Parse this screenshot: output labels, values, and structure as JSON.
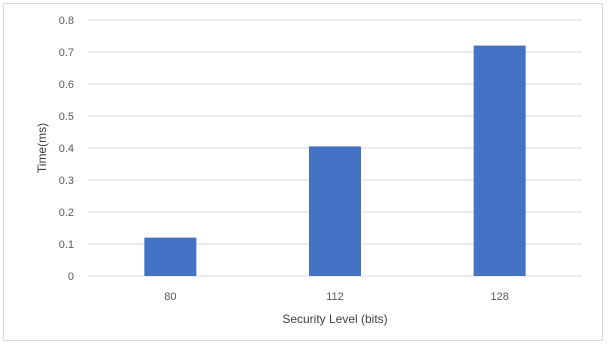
{
  "chart_data": {
    "type": "bar",
    "title": "",
    "xlabel": "Security Level (bits)",
    "ylabel": "Time(ms)",
    "categories": [
      "80",
      "112",
      "128"
    ],
    "values": [
      0.12,
      0.405,
      0.72
    ],
    "ylim": [
      0,
      0.8
    ],
    "yticks": [
      "0",
      "0.1",
      "0.2",
      "0.3",
      "0.4",
      "0.5",
      "0.6",
      "0.7",
      "0.8"
    ],
    "grid": true,
    "bar_color": "#4472C4",
    "gridline_color": "#d9d9d9"
  }
}
